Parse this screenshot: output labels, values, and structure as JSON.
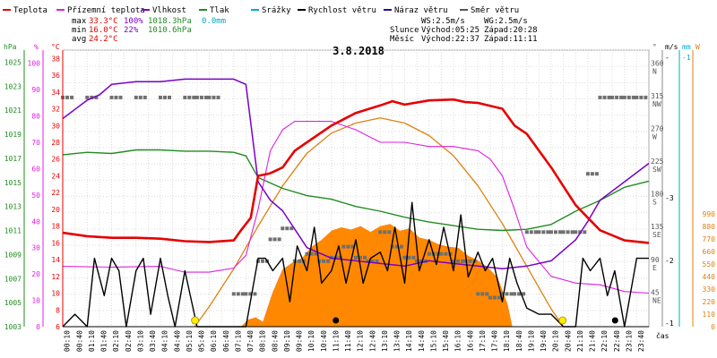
{
  "chart_data": {
    "type": "line",
    "title": "3.8.2018",
    "legend": [
      {
        "key": "temp",
        "label": "Teplota",
        "color": "#e60000"
      },
      {
        "key": "feels",
        "label": "Přízemní teplota",
        "color": "#e020e0"
      },
      {
        "key": "hum",
        "label": "Vlhkost",
        "color": "#7a00c8"
      },
      {
        "key": "press",
        "label": "Tlak",
        "color": "#228b22"
      },
      {
        "key": "rain",
        "label": "Srážky",
        "color": "#00aacc"
      },
      {
        "key": "wind",
        "label": "Rychlost větru",
        "color": "#000000"
      },
      {
        "key": "gust",
        "label": "Náraz větru",
        "color": "#2a0aa0"
      },
      {
        "key": "dir",
        "label": "Směr větru",
        "color": "#555555"
      }
    ],
    "stats": {
      "max": {
        "label": "max",
        "temp": "33.3°C",
        "hum": "100%",
        "press": "1018.3hPa",
        "rain": "0.0mm"
      },
      "min": {
        "label": "min",
        "temp": "16.0°C",
        "hum": "22%",
        "press": "1010.6hPa"
      },
      "avg": {
        "label": "avg",
        "temp": "24.2°C"
      },
      "ws": "WS:2.5m/s",
      "wg": "WG:2.5m/s",
      "sun": {
        "label": "Slunce",
        "rise": "Východ:05:25",
        "set": "Západ:20:28"
      },
      "moon": {
        "label": "Měsíc",
        "rise": "Východ:22:37",
        "set": "Západ:11:11"
      }
    },
    "axes": {
      "hpa": {
        "title": "hPa",
        "ticks": [
          "1025",
          "1023",
          "1021",
          "1019",
          "1017",
          "1015",
          "1013",
          "1011",
          "1009",
          "1007",
          "1005",
          "1003"
        ],
        "range": [
          1003,
          1026
        ]
      },
      "pct": {
        "title": "%",
        "ticks": [
          "100",
          "90",
          "80",
          "70",
          "60",
          "50",
          "40",
          "30",
          "20",
          "10",
          "0"
        ],
        "range": [
          0,
          105
        ]
      },
      "degc": {
        "title": "°C",
        "ticks": [
          "38",
          "36",
          "34",
          "32",
          "30",
          "28",
          "26",
          "24",
          "22",
          "20",
          "18",
          "16",
          "14",
          "12",
          "10",
          "8",
          "6"
        ],
        "range": [
          6,
          39
        ]
      },
      "deg": {
        "title": "°",
        "ticks": [
          {
            "v": "360",
            "d": "N"
          },
          {
            "v": "315",
            "d": "NW"
          },
          {
            "v": "270",
            "d": "W"
          },
          {
            "v": "225",
            "d": "SW"
          },
          {
            "v": "180",
            "d": "S"
          },
          {
            "v": "135",
            "d": "SE"
          },
          {
            "v": "90",
            "d": "E"
          },
          {
            "v": "45",
            "d": "NE"
          }
        ]
      },
      "ms": {
        "title": "m/s",
        "ticks": [
          "-3",
          "-2",
          "-1"
        ],
        "top": "-"
      },
      "mm": {
        "title": "mm",
        "top": "-1"
      },
      "wm2": {
        "title": "W",
        "ticks": [
          "990",
          "880",
          "770",
          "660",
          "550",
          "440",
          "330",
          "220",
          "110",
          "0"
        ]
      },
      "x": {
        "label": "čas",
        "ticks": [
          "00:10",
          "00:40",
          "01:10",
          "01:40",
          "02:10",
          "02:40",
          "03:10",
          "03:40",
          "04:10",
          "04:40",
          "05:10",
          "05:40",
          "06:10",
          "06:40",
          "07:10",
          "07:40",
          "08:10",
          "08:40",
          "09:10",
          "09:40",
          "10:10",
          "10:40",
          "11:10",
          "11:40",
          "12:10",
          "12:40",
          "13:10",
          "13:40",
          "14:10",
          "14:40",
          "15:10",
          "15:40",
          "16:10",
          "16:40",
          "17:10",
          "17:40",
          "18:10",
          "18:40",
          "19:10",
          "19:40",
          "20:10",
          "20:40",
          "21:10",
          "21:40",
          "22:10",
          "22:40",
          "23:10",
          "23:40"
        ]
      }
    },
    "series": {
      "temp": {
        "t": [
          0,
          1,
          2,
          3,
          4,
          5,
          6,
          7,
          7.3,
          7.7,
          8,
          8.5,
          9,
          9.5,
          10,
          11,
          12,
          13,
          13.5,
          14,
          15,
          16,
          16.5,
          17,
          18,
          18.5,
          19,
          20,
          21,
          21.5,
          22,
          23,
          24
        ],
        "v": [
          17.2,
          16.8,
          16.6,
          16.6,
          16.5,
          16.2,
          16.1,
          16.3,
          17.5,
          19,
          24,
          24.3,
          25,
          27,
          28,
          30,
          31.5,
          32.4,
          32.9,
          32.5,
          33,
          33.1,
          32.8,
          32.7,
          32,
          30,
          29,
          25,
          20.5,
          19,
          17.5,
          16.3,
          16
        ]
      },
      "feels": {
        "t": [
          0,
          2,
          4,
          5,
          6,
          7,
          7.5,
          8,
          8.5,
          9,
          9.5,
          10,
          11,
          12,
          13,
          14,
          15,
          16,
          17,
          17.5,
          18,
          18.5,
          19,
          20,
          21,
          22,
          23,
          24
        ],
        "v": [
          13.2,
          13.1,
          13.2,
          12.5,
          12.5,
          13,
          14.5,
          20,
          27,
          29.5,
          30.5,
          30.5,
          30.5,
          29.5,
          28,
          28,
          27.5,
          27.5,
          27,
          26,
          24,
          20,
          15.5,
          12,
          11.2,
          11,
          10.2,
          10
        ]
      },
      "hum": {
        "t": [
          0,
          1,
          1.5,
          2,
          3,
          4,
          5,
          6,
          7,
          7.5,
          8,
          8.5,
          9,
          9.5,
          10,
          11,
          12,
          13,
          14,
          15,
          16,
          17,
          18,
          19,
          20,
          21,
          21.5,
          22,
          23,
          24
        ],
        "v": [
          79,
          86,
          88,
          92,
          93,
          93,
          94,
          94,
          94,
          92,
          55,
          48,
          44,
          37,
          30,
          26,
          25,
          24,
          23,
          25,
          24,
          23,
          22,
          23,
          25,
          33,
          40,
          48,
          55,
          62
        ]
      },
      "press": {
        "t": [
          0,
          1,
          2,
          3,
          4,
          5,
          6,
          7,
          7.5,
          8,
          9,
          10,
          11,
          12,
          13,
          14,
          15,
          16,
          17,
          18,
          19,
          20,
          21,
          22,
          23,
          24
        ],
        "v": [
          1017.3,
          1017.5,
          1017.4,
          1017.7,
          1017.7,
          1017.6,
          1017.6,
          1017.5,
          1017.2,
          1015.4,
          1014.5,
          1013.9,
          1013.6,
          1013,
          1012.6,
          1012.1,
          1011.7,
          1011.4,
          1011.1,
          1011,
          1011.1,
          1011.5,
          1012.6,
          1013.5,
          1014.6,
          1015.1
        ]
      },
      "wind": {
        "t": [
          0,
          0.5,
          1,
          1.3,
          1.7,
          2,
          2.3,
          2.6,
          3,
          3.3,
          3.6,
          4,
          4.3,
          4.6,
          5,
          5.5,
          6,
          6.5,
          7,
          7.5,
          8,
          8.3,
          8.6,
          9,
          9.3,
          9.6,
          10,
          10.3,
          10.6,
          11,
          11.3,
          11.6,
          12,
          12.3,
          12.6,
          13,
          13.3,
          13.6,
          14,
          14.3,
          14.6,
          15,
          15.3,
          15.6,
          16,
          16.3,
          16.6,
          17,
          17.3,
          17.6,
          18,
          18.3,
          18.6,
          19,
          19.5,
          20,
          20.5,
          21,
          21.3,
          21.6,
          22,
          22.3,
          22.6,
          23,
          23.5,
          24
        ],
        "v": [
          0,
          2,
          0,
          11,
          5,
          11,
          9,
          0,
          9,
          11,
          2,
          11,
          5,
          0,
          9,
          0,
          0,
          0,
          0,
          0,
          11,
          11,
          9,
          11,
          4,
          13,
          9,
          16,
          7,
          9,
          13,
          7,
          14,
          7,
          11,
          12,
          9,
          16,
          7,
          20,
          9,
          14,
          10,
          16,
          9,
          18,
          8,
          12,
          9,
          11,
          4,
          11,
          7,
          3,
          2,
          2,
          0,
          0,
          11,
          9,
          11,
          5,
          9,
          0,
          11,
          11
        ]
      },
      "dir": {
        "t": [
          0,
          1,
          2,
          3,
          4,
          5,
          5.5,
          6,
          7,
          7.5,
          8,
          8.5,
          9,
          9.5,
          10,
          10.5,
          11,
          11.5,
          12,
          12.5,
          13,
          13.5,
          14,
          14.5,
          15,
          15.5,
          16,
          16.5,
          17,
          17.5,
          18,
          18.5,
          19,
          19.5,
          20,
          20.5,
          21,
          21.5,
          22,
          22.5,
          23,
          23.5
        ],
        "v": [
          315,
          315,
          315,
          315,
          315,
          315,
          315,
          315,
          45,
          45,
          90,
          120,
          135,
          90,
          100,
          90,
          95,
          110,
          95,
          90,
          130,
          110,
          95,
          90,
          100,
          100,
          90,
          90,
          45,
          40,
          45,
          45,
          130,
          130,
          130,
          130,
          130,
          210,
          315,
          315,
          315,
          315
        ]
      },
      "solar": {
        "t": [
          5.4,
          6,
          7,
          8,
          9,
          10,
          11,
          12,
          13,
          14,
          15,
          16,
          17,
          18,
          19,
          20,
          20.5
        ],
        "v": [
          0,
          80,
          230,
          400,
          560,
          690,
          770,
          810,
          830,
          810,
          760,
          680,
          560,
          410,
          240,
          70,
          0
        ]
      },
      "rad": {
        "t": [
          7.3,
          7.6,
          7.9,
          8.2,
          8.6,
          9,
          9.4,
          9.8,
          10.2,
          10.6,
          11,
          11.4,
          11.8,
          12.2,
          12.6,
          13,
          13.4,
          13.8,
          14.2,
          14.6,
          15,
          15.4,
          15.8,
          16.2,
          16.6,
          17,
          17.4,
          17.8,
          18.2,
          18.4
        ],
        "v": [
          0,
          60,
          80,
          40,
          300,
          500,
          560,
          600,
          700,
          760,
          840,
          870,
          850,
          880,
          830,
          880,
          900,
          840,
          860,
          780,
          760,
          720,
          700,
          690,
          620,
          580,
          520,
          430,
          200,
          0
        ]
      }
    },
    "sun_markers": [
      {
        "t": "05:25",
        "s": "☀"
      },
      {
        "t": "20:28",
        "s": "☀"
      }
    ],
    "moon_markers": [
      {
        "t": "11:11",
        "s": "●"
      },
      {
        "t": "22:37",
        "s": "●"
      }
    ]
  }
}
